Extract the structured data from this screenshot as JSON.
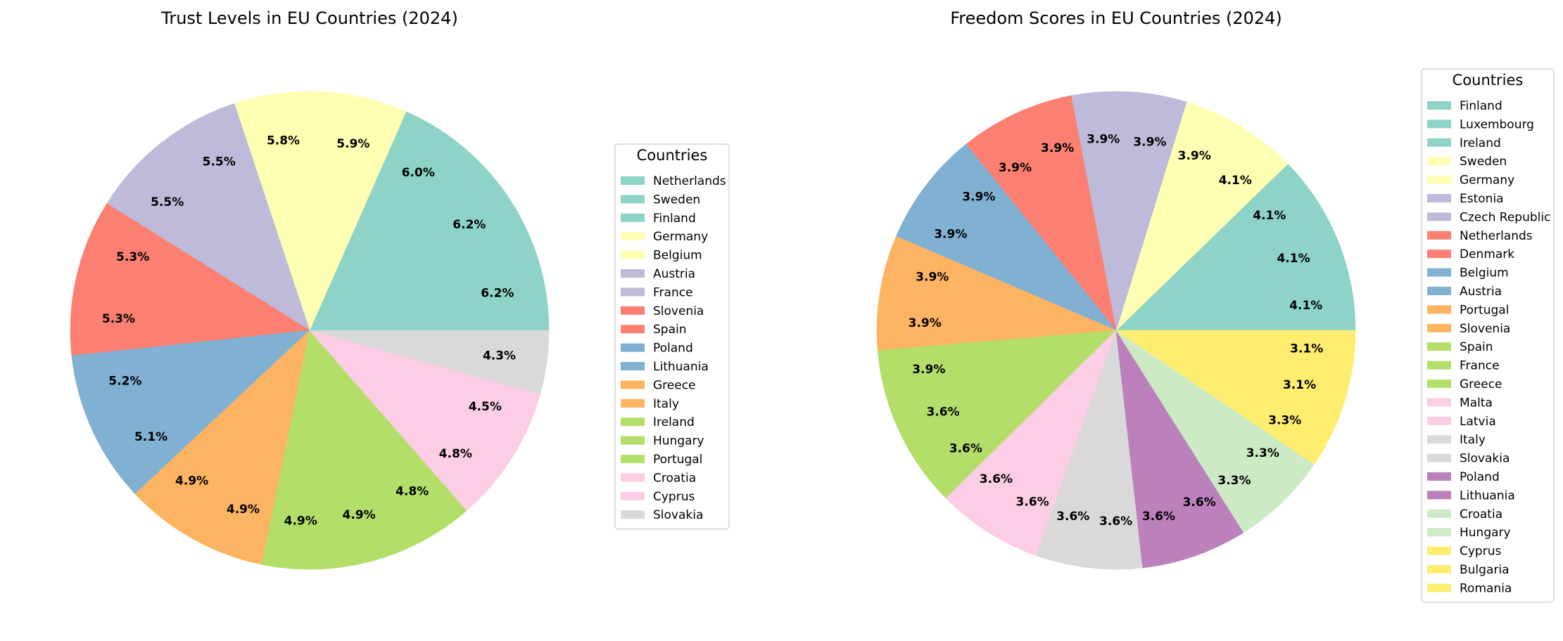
{
  "chart_data": [
    {
      "type": "pie",
      "title": "Trust Levels in EU Countries (2024)",
      "legend_title": "Countries",
      "legend_placement": "right",
      "start_angle": 0,
      "direction": "counterclockwise",
      "slices": [
        {
          "label": "Netherlands",
          "value": 6.2,
          "color": "#8dd3c7"
        },
        {
          "label": "Sweden",
          "value": 6.2,
          "color": "#8dd3c7"
        },
        {
          "label": "Finland",
          "value": 6.0,
          "color": "#8dd3c7"
        },
        {
          "label": "Germany",
          "value": 5.9,
          "color": "#ffffb3"
        },
        {
          "label": "Belgium",
          "value": 5.8,
          "color": "#ffffb3"
        },
        {
          "label": "Austria",
          "value": 5.5,
          "color": "#bebada"
        },
        {
          "label": "France",
          "value": 5.5,
          "color": "#bebada"
        },
        {
          "label": "Slovenia",
          "value": 5.3,
          "color": "#fb8072"
        },
        {
          "label": "Spain",
          "value": 5.3,
          "color": "#fb8072"
        },
        {
          "label": "Poland",
          "value": 5.2,
          "color": "#80b1d3"
        },
        {
          "label": "Lithuania",
          "value": 5.1,
          "color": "#80b1d3"
        },
        {
          "label": "Greece",
          "value": 4.9,
          "color": "#fdb462"
        },
        {
          "label": "Italy",
          "value": 4.9,
          "color": "#fdb462"
        },
        {
          "label": "Ireland",
          "value": 4.9,
          "color": "#b3de69"
        },
        {
          "label": "Hungary",
          "value": 4.9,
          "color": "#b3de69"
        },
        {
          "label": "Portugal",
          "value": 4.8,
          "color": "#b3de69"
        },
        {
          "label": "Croatia",
          "value": 4.8,
          "color": "#fccde5"
        },
        {
          "label": "Cyprus",
          "value": 4.5,
          "color": "#fccde5"
        },
        {
          "label": "Slovakia",
          "value": 4.3,
          "color": "#d9d9d9"
        }
      ]
    },
    {
      "type": "pie",
      "title": "Freedom Scores in EU Countries (2024)",
      "legend_title": "Countries",
      "legend_placement": "right",
      "start_angle": 0,
      "direction": "counterclockwise",
      "slices": [
        {
          "label": "Finland",
          "value": 4.1,
          "color": "#8dd3c7"
        },
        {
          "label": "Luxembourg",
          "value": 4.1,
          "color": "#8dd3c7"
        },
        {
          "label": "Ireland",
          "value": 4.1,
          "color": "#8dd3c7"
        },
        {
          "label": "Sweden",
          "value": 4.1,
          "color": "#ffffb3"
        },
        {
          "label": "Germany",
          "value": 3.9,
          "color": "#ffffb3"
        },
        {
          "label": "Estonia",
          "value": 3.9,
          "color": "#bebada"
        },
        {
          "label": "Czech Republic",
          "value": 3.9,
          "color": "#bebada"
        },
        {
          "label": "Netherlands",
          "value": 3.9,
          "color": "#fb8072"
        },
        {
          "label": "Denmark",
          "value": 3.9,
          "color": "#fb8072"
        },
        {
          "label": "Belgium",
          "value": 3.9,
          "color": "#80b1d3"
        },
        {
          "label": "Austria",
          "value": 3.9,
          "color": "#80b1d3"
        },
        {
          "label": "Portugal",
          "value": 3.9,
          "color": "#fdb462"
        },
        {
          "label": "Slovenia",
          "value": 3.9,
          "color": "#fdb462"
        },
        {
          "label": "Spain",
          "value": 3.9,
          "color": "#b3de69"
        },
        {
          "label": "France",
          "value": 3.6,
          "color": "#b3de69"
        },
        {
          "label": "Greece",
          "value": 3.6,
          "color": "#b3de69"
        },
        {
          "label": "Malta",
          "value": 3.6,
          "color": "#fccde5"
        },
        {
          "label": "Latvia",
          "value": 3.6,
          "color": "#fccde5"
        },
        {
          "label": "Italy",
          "value": 3.6,
          "color": "#d9d9d9"
        },
        {
          "label": "Slovakia",
          "value": 3.6,
          "color": "#d9d9d9"
        },
        {
          "label": "Poland",
          "value": 3.6,
          "color": "#bc80bd"
        },
        {
          "label": "Lithuania",
          "value": 3.6,
          "color": "#bc80bd"
        },
        {
          "label": "Croatia",
          "value": 3.3,
          "color": "#ccebc5"
        },
        {
          "label": "Hungary",
          "value": 3.3,
          "color": "#ccebc5"
        },
        {
          "label": "Cyprus",
          "value": 3.3,
          "color": "#ffed6f"
        },
        {
          "label": "Bulgaria",
          "value": 3.1,
          "color": "#ffed6f"
        },
        {
          "label": "Romania",
          "value": 3.1,
          "color": "#ffed6f"
        }
      ]
    }
  ]
}
